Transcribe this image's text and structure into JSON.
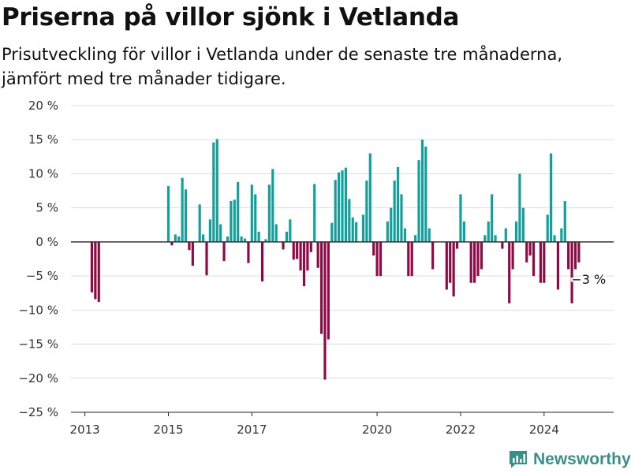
{
  "title": "Priserna på villor sjönk i Vetlanda",
  "subtitle": "Prisutveckling för villor i Vetlanda under de senaste tre månaderna, jämfört med tre månader tidigare.",
  "brand": "Newsworthy",
  "colors": {
    "positive": "#11a09b",
    "negative": "#8f0a45",
    "grid": "#dddddd",
    "zero": "#333333",
    "brand": "#3a8f8a"
  },
  "chart_data": {
    "type": "bar",
    "title": "Priserna på villor sjönk i Vetlanda",
    "subtitle": "Prisutveckling för villor i Vetlanda under de senaste tre månaderna, jämfört med tre månader tidigare.",
    "xlabel": "",
    "ylabel": "",
    "ylim": [
      -25,
      20
    ],
    "xlim": [
      "2012-09",
      "2025-09"
    ],
    "yticks": [
      20,
      15,
      10,
      5,
      0,
      -5,
      -10,
      -15,
      -20,
      -25
    ],
    "ytick_labels": [
      "20 %",
      "15 %",
      "10 %",
      "5 %",
      "0 %",
      "−5 %",
      "−10 %",
      "−15 %",
      "−20 %",
      "−25 %"
    ],
    "xtick_labels": [
      "2013",
      "2015",
      "2017",
      "2020",
      "2022",
      "2024"
    ],
    "xtick_dates": [
      "2013-01",
      "2015-01",
      "2017-01",
      "2020-01",
      "2022-01",
      "2024-01"
    ],
    "annotation": {
      "date": "2024-12",
      "label": "−3 %"
    },
    "grid": true,
    "unit": "%",
    "points": [
      {
        "date": "2013-03",
        "value": -7.4
      },
      {
        "date": "2013-04",
        "value": -8.4
      },
      {
        "date": "2013-05",
        "value": -8.8
      },
      {
        "date": "2015-01",
        "value": 8.2
      },
      {
        "date": "2015-02",
        "value": -0.5
      },
      {
        "date": "2015-03",
        "value": 1.1
      },
      {
        "date": "2015-04",
        "value": 0.8
      },
      {
        "date": "2015-05",
        "value": 9.4
      },
      {
        "date": "2015-06",
        "value": 7.7
      },
      {
        "date": "2015-07",
        "value": -1.2
      },
      {
        "date": "2015-08",
        "value": -3.5
      },
      {
        "date": "2015-10",
        "value": 5.5
      },
      {
        "date": "2015-11",
        "value": 1.1
      },
      {
        "date": "2015-12",
        "value": -4.9
      },
      {
        "date": "2016-01",
        "value": 3.3
      },
      {
        "date": "2016-02",
        "value": 14.6
      },
      {
        "date": "2016-03",
        "value": 15.1
      },
      {
        "date": "2016-04",
        "value": 2.6
      },
      {
        "date": "2016-05",
        "value": -2.8
      },
      {
        "date": "2016-06",
        "value": 0.8
      },
      {
        "date": "2016-07",
        "value": 6.0
      },
      {
        "date": "2016-08",
        "value": 6.2
      },
      {
        "date": "2016-09",
        "value": 8.8
      },
      {
        "date": "2016-10",
        "value": 0.8
      },
      {
        "date": "2016-11",
        "value": 0.5
      },
      {
        "date": "2016-12",
        "value": -3.1
      },
      {
        "date": "2017-01",
        "value": 8.4
      },
      {
        "date": "2017-02",
        "value": 7.0
      },
      {
        "date": "2017-03",
        "value": 1.5
      },
      {
        "date": "2017-04",
        "value": -5.8
      },
      {
        "date": "2017-05",
        "value": 0.4
      },
      {
        "date": "2017-06",
        "value": 8.4
      },
      {
        "date": "2017-07",
        "value": 10.7
      },
      {
        "date": "2017-08",
        "value": 2.6
      },
      {
        "date": "2017-10",
        "value": -1.1
      },
      {
        "date": "2017-11",
        "value": 1.5
      },
      {
        "date": "2017-12",
        "value": 3.3
      },
      {
        "date": "2018-01",
        "value": -2.6
      },
      {
        "date": "2018-02",
        "value": -2.5
      },
      {
        "date": "2018-03",
        "value": -4.2
      },
      {
        "date": "2018-04",
        "value": -6.5
      },
      {
        "date": "2018-05",
        "value": -4.2
      },
      {
        "date": "2018-06",
        "value": -1.5
      },
      {
        "date": "2018-07",
        "value": 8.5
      },
      {
        "date": "2018-08",
        "value": -3.8
      },
      {
        "date": "2018-09",
        "value": -13.5
      },
      {
        "date": "2018-10",
        "value": -20.2
      },
      {
        "date": "2018-11",
        "value": -14.3
      },
      {
        "date": "2018-12",
        "value": 2.8
      },
      {
        "date": "2019-01",
        "value": 9.1
      },
      {
        "date": "2019-02",
        "value": 10.2
      },
      {
        "date": "2019-03",
        "value": 10.5
      },
      {
        "date": "2019-04",
        "value": 10.9
      },
      {
        "date": "2019-05",
        "value": 6.3
      },
      {
        "date": "2019-06",
        "value": 3.6
      },
      {
        "date": "2019-07",
        "value": 2.9
      },
      {
        "date": "2019-09",
        "value": 4.0
      },
      {
        "date": "2019-10",
        "value": 9.0
      },
      {
        "date": "2019-11",
        "value": 13.0
      },
      {
        "date": "2019-12",
        "value": -2.0
      },
      {
        "date": "2020-01",
        "value": -5.0
      },
      {
        "date": "2020-02",
        "value": -5.0
      },
      {
        "date": "2020-04",
        "value": 3.0
      },
      {
        "date": "2020-05",
        "value": 5.0
      },
      {
        "date": "2020-06",
        "value": 9.0
      },
      {
        "date": "2020-07",
        "value": 11.0
      },
      {
        "date": "2020-08",
        "value": 7.0
      },
      {
        "date": "2020-09",
        "value": 2.0
      },
      {
        "date": "2020-10",
        "value": -5.0
      },
      {
        "date": "2020-11",
        "value": -5.0
      },
      {
        "date": "2020-12",
        "value": 1.0
      },
      {
        "date": "2021-01",
        "value": 12.0
      },
      {
        "date": "2021-02",
        "value": 15.0
      },
      {
        "date": "2021-03",
        "value": 14.0
      },
      {
        "date": "2021-04",
        "value": 2.0
      },
      {
        "date": "2021-05",
        "value": -4.0
      },
      {
        "date": "2021-09",
        "value": -7.0
      },
      {
        "date": "2021-10",
        "value": -6.0
      },
      {
        "date": "2021-11",
        "value": -8.0
      },
      {
        "date": "2021-12",
        "value": -1.0
      },
      {
        "date": "2022-01",
        "value": 7.0
      },
      {
        "date": "2022-02",
        "value": 3.0
      },
      {
        "date": "2022-04",
        "value": -6.0
      },
      {
        "date": "2022-05",
        "value": -6.0
      },
      {
        "date": "2022-06",
        "value": -5.0
      },
      {
        "date": "2022-07",
        "value": -4.0
      },
      {
        "date": "2022-08",
        "value": 1.0
      },
      {
        "date": "2022-09",
        "value": 3.0
      },
      {
        "date": "2022-10",
        "value": 7.0
      },
      {
        "date": "2022-11",
        "value": 1.0
      },
      {
        "date": "2023-01",
        "value": -1.0
      },
      {
        "date": "2023-02",
        "value": 2.0
      },
      {
        "date": "2023-03",
        "value": -9.0
      },
      {
        "date": "2023-04",
        "value": -4.0
      },
      {
        "date": "2023-05",
        "value": 3.0
      },
      {
        "date": "2023-06",
        "value": 10.0
      },
      {
        "date": "2023-07",
        "value": 5.0
      },
      {
        "date": "2023-08",
        "value": -3.0
      },
      {
        "date": "2023-09",
        "value": -2.0
      },
      {
        "date": "2023-10",
        "value": -5.0
      },
      {
        "date": "2023-12",
        "value": -6.0
      },
      {
        "date": "2024-01",
        "value": -6.0
      },
      {
        "date": "2024-02",
        "value": 4.0
      },
      {
        "date": "2024-03",
        "value": 13.0
      },
      {
        "date": "2024-04",
        "value": 1.0
      },
      {
        "date": "2024-05",
        "value": -7.0
      },
      {
        "date": "2024-06",
        "value": 2.0
      },
      {
        "date": "2024-07",
        "value": 6.0
      },
      {
        "date": "2024-08",
        "value": -4.0
      },
      {
        "date": "2024-09",
        "value": -9.0
      },
      {
        "date": "2024-10",
        "value": -4.0
      },
      {
        "date": "2024-11",
        "value": -3.0
      }
    ]
  }
}
